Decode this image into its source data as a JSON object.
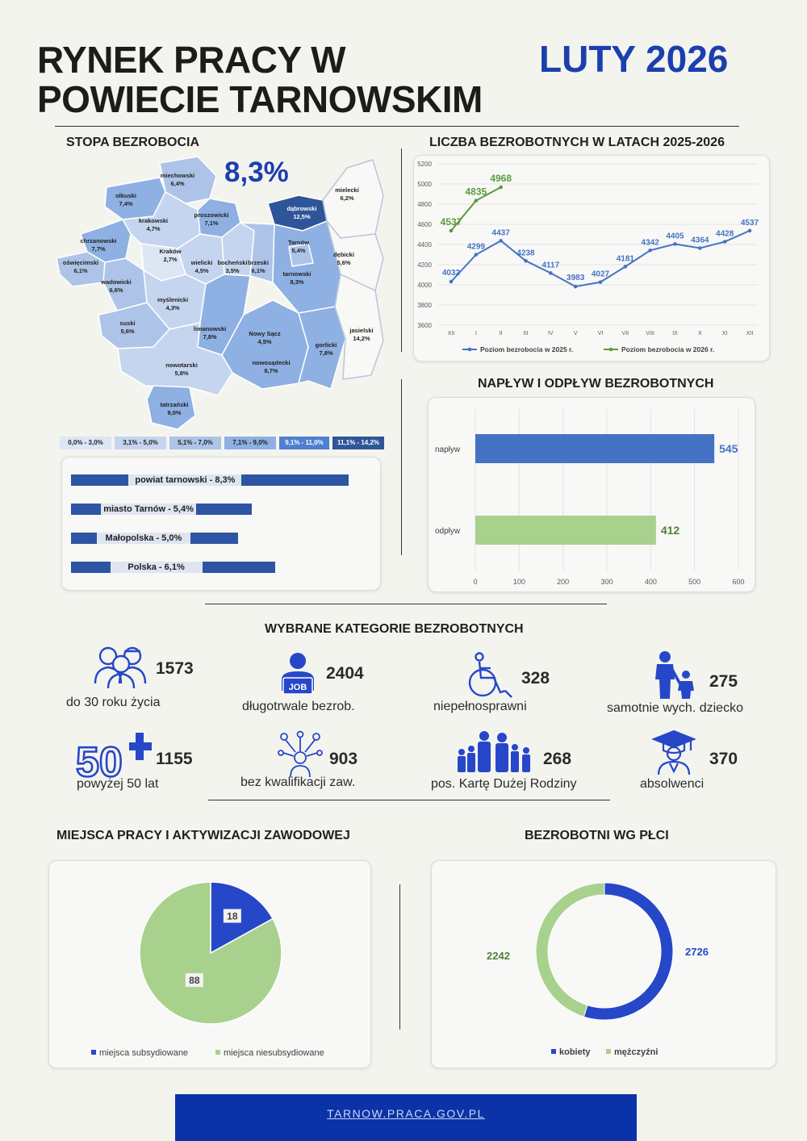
{
  "header": {
    "title_line1": "RYNEK PRACY W",
    "title_line2": "POWIECIE TARNOWSKIM",
    "date": "LUTY 2026"
  },
  "rate_section": {
    "title": "STOPA BEZROBOCIA",
    "big_rate": "8,3%",
    "districts": [
      {
        "name": "miechowski",
        "value": "6,4%"
      },
      {
        "name": "olkuski",
        "value": "7,4%"
      },
      {
        "name": "krakowski",
        "value": "4,7%"
      },
      {
        "name": "proszowicki",
        "value": "7,1%"
      },
      {
        "name": "dąbrowski",
        "value": "12,5%"
      },
      {
        "name": "chrzanowski",
        "value": "7,7%"
      },
      {
        "name": "Kraków",
        "value": "2,7%"
      },
      {
        "name": "wielicki",
        "value": "4,5%"
      },
      {
        "name": "bocheński",
        "value": "3,5%"
      },
      {
        "name": "brzeski",
        "value": "6,1%"
      },
      {
        "name": "Tarnów",
        "value": "5,4%"
      },
      {
        "name": "tarnowski",
        "value": "8,3%"
      },
      {
        "name": "oświęcimski",
        "value": "6,1%"
      },
      {
        "name": "wadowicki",
        "value": "6,6%"
      },
      {
        "name": "myślenicki",
        "value": "4,3%"
      },
      {
        "name": "suski",
        "value": "5,6%"
      },
      {
        "name": "limanowski",
        "value": "7,8%"
      },
      {
        "name": "Nowy Sącz",
        "value": "4,5%"
      },
      {
        "name": "nowosądecki",
        "value": "8,7%"
      },
      {
        "name": "gorlicki",
        "value": "7,8%"
      },
      {
        "name": "jasielski",
        "value": "14,2%"
      },
      {
        "name": "mielecki",
        "value": "6,2%"
      },
      {
        "name": "dębicki",
        "value": "5,6%"
      },
      {
        "name": "nowotarski",
        "value": "5,8%"
      },
      {
        "name": "tatrzański",
        "value": "9,0%"
      }
    ],
    "legend": [
      {
        "label": "0,0% - 3,0%",
        "color": "#dce6f5"
      },
      {
        "label": "3,1% - 5,0%",
        "color": "#c5d5ef"
      },
      {
        "label": "5,1% - 7,0%",
        "color": "#adc4e8"
      },
      {
        "label": "7,1% - 9,0%",
        "color": "#8eb0e2"
      },
      {
        "label": "9,1% - 11,0%",
        "color": "#4f7fd0"
      },
      {
        "label": "11,1% - 14,2%",
        "color": "#2e5598"
      }
    ],
    "comparisons": [
      {
        "label": "powiat tarnowski - 8,3%",
        "value": 8.3
      },
      {
        "label": "miasto Tarnów - 5,4%",
        "value": 5.4
      },
      {
        "label": "Małopolska - 5,0%",
        "value": 5.0
      },
      {
        "label": "Polska - 6,1%",
        "value": 6.1
      }
    ]
  },
  "charts": {
    "line": {
      "type": "line",
      "title": "LICZBA BEZROBOTNYCH W LATACH 2025-2026",
      "categories": [
        "XII",
        "I",
        "II",
        "III",
        "IV",
        "V",
        "VI",
        "VII",
        "VIII",
        "IX",
        "X",
        "XI",
        "XII"
      ],
      "ylim": [
        3600,
        5200
      ],
      "yticks": [
        3600,
        3800,
        4000,
        4200,
        4400,
        4600,
        4800,
        5000,
        5200
      ],
      "series": [
        {
          "name": "Poziom bezrobocia w 2025 r.",
          "color": "#4472c4",
          "values": [
            4032,
            4299,
            4437,
            4238,
            4117,
            3983,
            4027,
            4181,
            4342,
            4405,
            4364,
            4428,
            4537
          ]
        },
        {
          "name": "Poziom bezrobocia w 2026 r.",
          "color": "#5b9a3c",
          "values": [
            4537,
            4835,
            4968
          ]
        }
      ],
      "grid": true,
      "legend": "bottom"
    },
    "bar": {
      "type": "bar",
      "title": "NAPŁYW I ODPŁYW BEZROBOTNYCH",
      "orientation": "horizontal",
      "categories": [
        "napływ",
        "odpływ"
      ],
      "values": [
        545,
        412
      ],
      "colors": [
        "#4472c4",
        "#a9d18e"
      ],
      "label_colors": [
        "#4472c4",
        "#538135"
      ],
      "xlim": [
        0,
        600
      ],
      "xticks": [
        0,
        100,
        200,
        300,
        400,
        500,
        600
      ],
      "grid": true
    },
    "pie": {
      "type": "pie",
      "title": "MIEJSCA PRACY I AKTYWIZACJI ZAWODOWEJ",
      "labels": [
        "miejsca subsydiowane",
        "miejsca niesubsydiowane"
      ],
      "values": [
        18,
        88
      ],
      "colors": [
        "#2747c9",
        "#a9d18e"
      ],
      "legend": "bottom"
    },
    "donut": {
      "type": "pie",
      "title": "BEZROBOTNI WG PŁCI",
      "labels": [
        "kobiety",
        "mężczyźni"
      ],
      "values": [
        2726,
        2242
      ],
      "colors": [
        "#2747c9",
        "#a9d18e"
      ],
      "label_colors": [
        "#2747c9",
        "#538135"
      ],
      "legend": "bottom"
    }
  },
  "categories_section": {
    "title": "WYBRANE KATEGORIE BEZROBOTNYCH",
    "items": [
      {
        "value": "1573",
        "label": "do 30 roku życia",
        "icon": "young-people-icon"
      },
      {
        "value": "2404",
        "label": "długotrwale bezrob.",
        "icon": "job-seeker-icon",
        "badge": "JOB"
      },
      {
        "value": "328",
        "label": "niepełnosprawni",
        "icon": "wheelchair-icon"
      },
      {
        "value": "275",
        "label": "samotnie wych. dziecko",
        "icon": "parent-child-icon"
      },
      {
        "value": "1155",
        "label": "powyżej 50 lat",
        "icon": "fifty-plus-icon",
        "badge": "50"
      },
      {
        "value": "903",
        "label": "bez kwalifikacji zaw.",
        "icon": "skills-icon"
      },
      {
        "value": "268",
        "label": "pos. Kartę Dużej Rodziny",
        "icon": "family-icon"
      },
      {
        "value": "370",
        "label": "absolwenci",
        "icon": "graduate-icon"
      }
    ]
  },
  "footer": {
    "link": "TARNOW.PRACA.GOV.PL"
  }
}
